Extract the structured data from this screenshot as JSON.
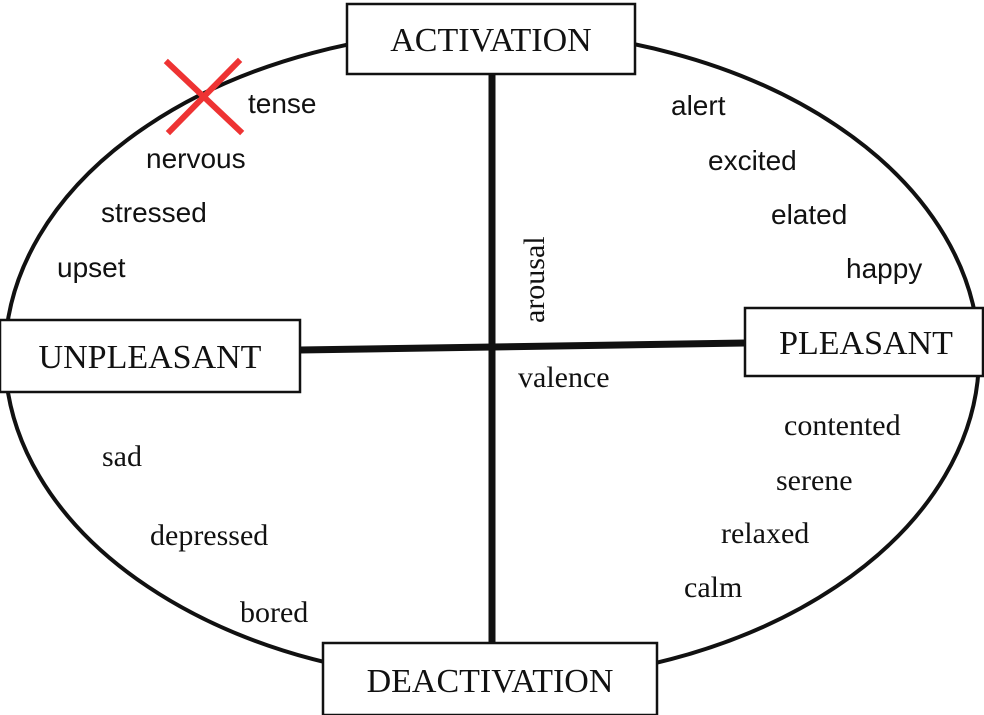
{
  "poles": {
    "top": "ACTIVATION",
    "bottom": "DEACTIVATION",
    "left": "UNPLEASANT",
    "right": "PLEASANT"
  },
  "axes": {
    "vertical": "arousal",
    "horizontal": "valence"
  },
  "quadrants": {
    "upper_left": [
      "tense",
      "nervous",
      "stressed",
      "upset"
    ],
    "upper_right": [
      "alert",
      "excited",
      "elated",
      "happy"
    ],
    "lower_left": [
      "sad",
      "depressed",
      "bored"
    ],
    "lower_right": [
      "contented",
      "serene",
      "relaxed",
      "calm"
    ]
  },
  "marks": {
    "cross_icon": "red-x-icon",
    "cross_color": "#ee3333",
    "crossed_word": "tense"
  },
  "colors": {
    "line": "#111111",
    "background": "#ffffff"
  }
}
